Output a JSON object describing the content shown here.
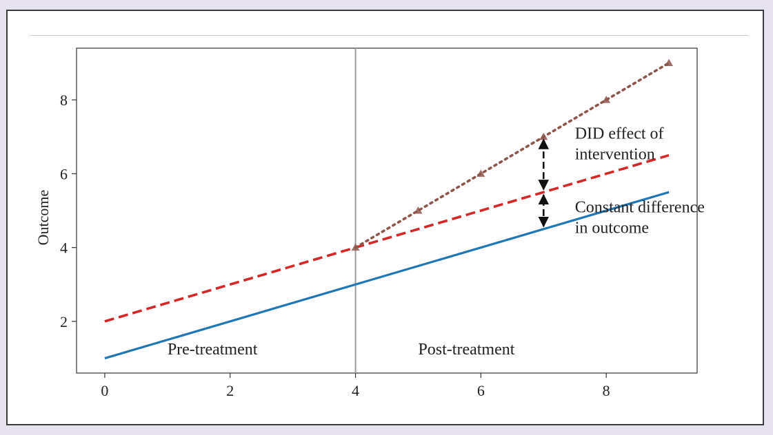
{
  "chart_data": {
    "type": "line",
    "title": "",
    "xlabel": "",
    "ylabel": "Outcome",
    "xlim": [
      -0.45,
      9.45
    ],
    "ylim": [
      0.6,
      9.4
    ],
    "xticks": [
      0,
      2,
      4,
      6,
      8
    ],
    "yticks": [
      2,
      4,
      6,
      8
    ],
    "grid": false,
    "treatment_x": 4,
    "series": [
      {
        "style": "solid",
        "color": "#1f77b4",
        "x": [
          0,
          9
        ],
        "y": [
          1,
          5.5
        ]
      },
      {
        "style": "dashed",
        "color": "#d62728",
        "x": [
          0,
          9
        ],
        "y": [
          2,
          6.5
        ]
      },
      {
        "style": "dotted",
        "color": "#8c564b",
        "marker": "triangle",
        "x": [
          4,
          5,
          6,
          7,
          8,
          9
        ],
        "y": [
          4,
          5,
          6,
          7,
          8,
          9
        ]
      }
    ],
    "arrows": [
      {
        "x": 7,
        "y_from": 5.5,
        "y_to": 7
      },
      {
        "x": 7,
        "y_from": 4.5,
        "y_to": 5.5
      }
    ],
    "annotations": [
      {
        "name": "did-effect",
        "lines": [
          "DID effect of",
          "intervention"
        ],
        "x": 7.5,
        "y": 6.95
      },
      {
        "name": "constant-difference",
        "lines": [
          "Constant difference",
          "in outcome"
        ],
        "x": 7.5,
        "y": 4.95
      },
      {
        "name": "pre-treatment",
        "lines": [
          "Pre-treatment"
        ],
        "x": 1,
        "y": 1.1
      },
      {
        "name": "post-treatment",
        "lines": [
          "Post-treatment"
        ],
        "x": 5,
        "y": 1.1
      }
    ]
  }
}
